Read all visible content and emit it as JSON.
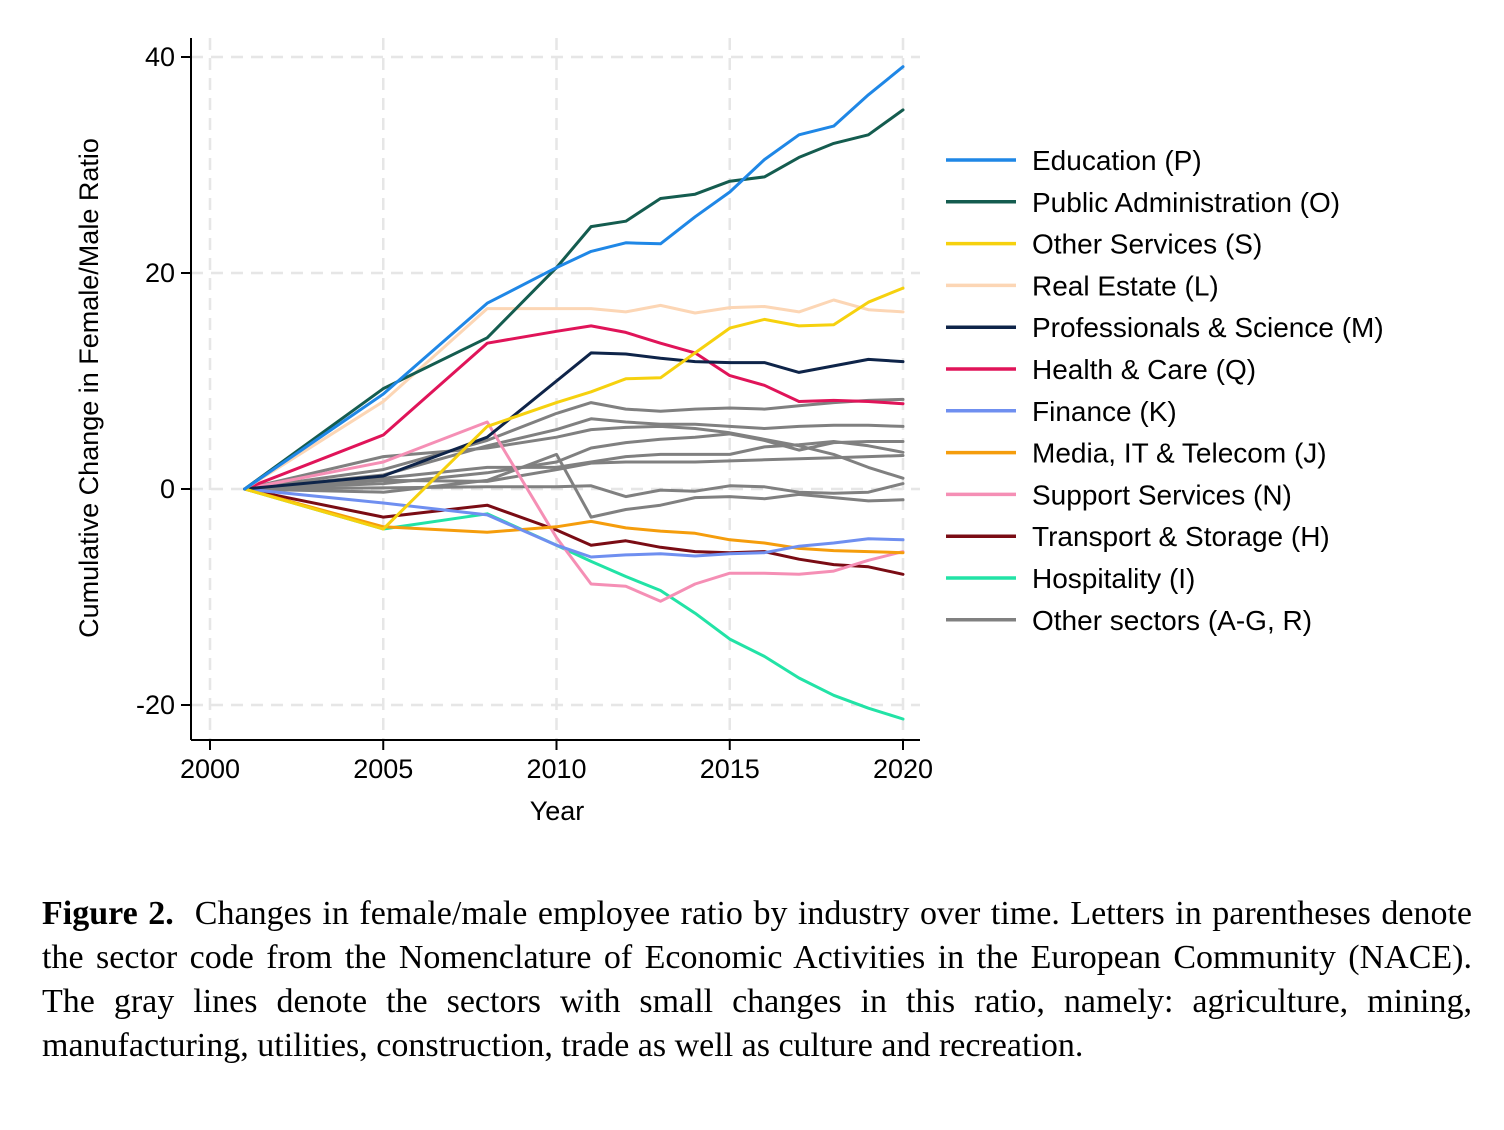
{
  "chart_data": {
    "type": "line",
    "xlabel": "Year",
    "ylabel": "Cumulative Change in Female/Male Ratio",
    "xlim": [
      1999.5,
      2020.5
    ],
    "ylim": [
      -23,
      42
    ],
    "xticks": [
      2000,
      2005,
      2010,
      2015,
      2020
    ],
    "yticks": [
      -20,
      0,
      20,
      40
    ],
    "grid": true,
    "legend_position": "right",
    "series": [
      {
        "name": "Education (P)",
        "color": "#1f87e6",
        "x": [
          2001,
          2005,
          2008,
          2010,
          2011,
          2012,
          2013,
          2014,
          2015,
          2016,
          2017,
          2018,
          2019,
          2020
        ],
        "y": [
          0,
          8.8,
          17.2,
          20.5,
          22,
          22.8,
          22.7,
          25.2,
          27.5,
          30.5,
          32.8,
          33.6,
          36.5,
          39.1
        ]
      },
      {
        "name": "Public Administration (O)",
        "color": "#145c4f",
        "x": [
          2001,
          2005,
          2008,
          2010,
          2011,
          2012,
          2013,
          2014,
          2015,
          2016,
          2017,
          2018,
          2019,
          2020
        ],
        "y": [
          0,
          9.3,
          14,
          20.5,
          24.3,
          24.8,
          26.9,
          27.3,
          28.5,
          28.9,
          30.7,
          32,
          32.8,
          35.1
        ]
      },
      {
        "name": "Other Services (S)",
        "color": "#f6d10e",
        "x": [
          2001,
          2005,
          2008,
          2010,
          2011,
          2012,
          2013,
          2014,
          2015,
          2016,
          2017,
          2018,
          2019,
          2020
        ],
        "y": [
          0,
          -3.7,
          5.8,
          8,
          9,
          10.2,
          10.3,
          12.6,
          14.9,
          15.7,
          15.1,
          15.2,
          17.3,
          18.6
        ]
      },
      {
        "name": "Real Estate (L)",
        "color": "#fcd6b5",
        "x": [
          2001,
          2005,
          2008,
          2010,
          2011,
          2012,
          2013,
          2014,
          2015,
          2016,
          2017,
          2018,
          2019,
          2020
        ],
        "y": [
          0,
          8.1,
          16.7,
          16.7,
          16.7,
          16.4,
          17,
          16.3,
          16.8,
          16.9,
          16.4,
          17.5,
          16.6,
          16.4
        ]
      },
      {
        "name": "Professionals & Science (M)",
        "color": "#0e2449",
        "x": [
          2001,
          2005,
          2008,
          2010,
          2011,
          2012,
          2013,
          2014,
          2015,
          2016,
          2017,
          2018,
          2019,
          2020
        ],
        "y": [
          0,
          1.2,
          4.8,
          10,
          12.6,
          12.5,
          12.1,
          11.8,
          11.7,
          11.7,
          10.8,
          11.4,
          12,
          11.8
        ]
      },
      {
        "name": "Health & Care (Q)",
        "color": "#e01459",
        "x": [
          2001,
          2005,
          2008,
          2010,
          2011,
          2012,
          2013,
          2014,
          2015,
          2016,
          2017,
          2018,
          2019,
          2020
        ],
        "y": [
          0,
          5,
          13.5,
          14.6,
          15.1,
          14.5,
          13.5,
          12.6,
          10.5,
          9.6,
          8.1,
          8.2,
          8.1,
          7.9
        ]
      },
      {
        "name": "Finance (K)",
        "color": "#6f8ff0",
        "x": [
          2001,
          2005,
          2008,
          2010,
          2011,
          2012,
          2013,
          2014,
          2015,
          2016,
          2017,
          2018,
          2019,
          2020
        ],
        "y": [
          0,
          -1.3,
          -2.4,
          -5.2,
          -6.3,
          -6.1,
          -6,
          -6.2,
          -6,
          -5.9,
          -5.3,
          -5,
          -4.6,
          -4.7
        ]
      },
      {
        "name": "Media, IT & Telecom (J)",
        "color": "#f59d0c",
        "x": [
          2001,
          2005,
          2008,
          2010,
          2011,
          2012,
          2013,
          2014,
          2015,
          2016,
          2017,
          2018,
          2019,
          2020
        ],
        "y": [
          0,
          -3.5,
          -4,
          -3.5,
          -3,
          -3.6,
          -3.9,
          -4.1,
          -4.7,
          -5,
          -5.5,
          -5.7,
          -5.8,
          -5.9
        ]
      },
      {
        "name": "Support Services (N)",
        "color": "#f58fb5",
        "x": [
          2001,
          2005,
          2008,
          2010,
          2011,
          2012,
          2013,
          2014,
          2015,
          2016,
          2017,
          2018,
          2019,
          2020
        ],
        "y": [
          0,
          2.5,
          6.2,
          -4.5,
          -8.8,
          -9,
          -10.4,
          -8.8,
          -7.8,
          -7.8,
          -7.9,
          -7.6,
          -6.6,
          -5.8
        ]
      },
      {
        "name": "Transport & Storage (H)",
        "color": "#7a0c14",
        "x": [
          2001,
          2005,
          2008,
          2010,
          2011,
          2012,
          2013,
          2014,
          2015,
          2016,
          2017,
          2018,
          2019,
          2020
        ],
        "y": [
          0,
          -2.6,
          -1.5,
          -3.8,
          -5.2,
          -4.8,
          -5.4,
          -5.8,
          -5.9,
          -5.8,
          -6.5,
          -7,
          -7.2,
          -7.9
        ]
      },
      {
        "name": "Hospitality (I)",
        "color": "#22e3a6",
        "x": [
          2001,
          2005,
          2008,
          2010,
          2011,
          2012,
          2013,
          2014,
          2015,
          2016,
          2017,
          2018,
          2019,
          2020
        ],
        "y": [
          0,
          -3.7,
          -2.3,
          -5.2,
          -6.7,
          -8.1,
          -9.4,
          -11.5,
          -13.9,
          -15.5,
          -17.5,
          -19.1,
          -20.3,
          -21.3
        ]
      },
      {
        "name": "Other sectors (A-G, R)",
        "color": "#808080",
        "x": [
          2001,
          2005,
          2008,
          2010,
          2011,
          2012,
          2013,
          2014,
          2015,
          2016,
          2017,
          2018,
          2019,
          2020
        ],
        "y": [
          0,
          1.8,
          4.5,
          7,
          8,
          7.4,
          7.2,
          7.4,
          7.5,
          7.4,
          7.7,
          8,
          8.2,
          8.3
        ]
      },
      {
        "name": "",
        "color": "#808080",
        "x": [
          2001,
          2005,
          2008,
          2010,
          2011,
          2012,
          2013,
          2014,
          2015,
          2016,
          2017,
          2018,
          2019,
          2020
        ],
        "y": [
          0,
          1.3,
          4,
          5.5,
          6.5,
          6.2,
          6,
          6,
          5.8,
          5.6,
          5.8,
          5.9,
          5.9,
          5.8
        ]
      },
      {
        "name": "",
        "color": "#808080",
        "x": [
          2001,
          2005,
          2008,
          2010,
          2011,
          2012,
          2013,
          2014,
          2015,
          2016,
          2017,
          2018,
          2019,
          2020
        ],
        "y": [
          0,
          3,
          3.8,
          4.8,
          5.5,
          5.7,
          5.8,
          5.6,
          5.2,
          4.6,
          4,
          3.2,
          2,
          1
        ]
      },
      {
        "name": "",
        "color": "#808080",
        "x": [
          2001,
          2005,
          2008,
          2010,
          2011,
          2012,
          2013,
          2014,
          2015,
          2016,
          2017,
          2018,
          2019,
          2020
        ],
        "y": [
          0,
          0.5,
          1.5,
          2.5,
          3.8,
          4.3,
          4.6,
          4.8,
          5.1,
          4.5,
          3.6,
          4.3,
          4.4,
          4.4
        ]
      },
      {
        "name": "",
        "color": "#808080",
        "x": [
          2001,
          2005,
          2008,
          2010,
          2011,
          2012,
          2013,
          2014,
          2015,
          2016,
          2017,
          2018,
          2019,
          2020
        ],
        "y": [
          0,
          1,
          2,
          2,
          2.5,
          3,
          3.2,
          3.2,
          3.2,
          3.9,
          4.1,
          4.4,
          4,
          3.4
        ]
      },
      {
        "name": "",
        "color": "#808080",
        "x": [
          2001,
          2005,
          2008,
          2010,
          2011,
          2012,
          2013,
          2014,
          2015,
          2016,
          2017,
          2018,
          2019,
          2020
        ],
        "y": [
          0,
          0.8,
          0.7,
          1.8,
          2.4,
          2.5,
          2.5,
          2.5,
          2.6,
          2.7,
          2.8,
          2.9,
          3,
          3.1
        ]
      },
      {
        "name": "",
        "color": "#808080",
        "x": [
          2001,
          2005,
          2008,
          2010,
          2011,
          2012,
          2013,
          2014,
          2015,
          2016,
          2017,
          2018,
          2019,
          2020
        ],
        "y": [
          0,
          0.1,
          0.2,
          0.2,
          0.3,
          -0.7,
          -0.1,
          -0.2,
          0.3,
          0.2,
          -0.3,
          -0.4,
          -0.3,
          0.5
        ]
      },
      {
        "name": "",
        "color": "#808080",
        "x": [
          2001,
          2005,
          2008,
          2010,
          2011,
          2012,
          2013,
          2014,
          2015,
          2016,
          2017,
          2018,
          2019,
          2020
        ],
        "y": [
          0,
          -0.3,
          0.8,
          3.2,
          -2.6,
          -1.9,
          -1.5,
          -0.8,
          -0.7,
          -0.9,
          -0.5,
          -0.8,
          -1.1,
          -1
        ]
      }
    ]
  },
  "caption": {
    "label": "Figure 2.",
    "text": "Changes in female/male employee ratio by industry over time. Letters in parentheses denote the sector code from the Nomenclature of Economic Activities in the European Community (NACE). The gray lines denote the sectors with small changes in this ratio, namely: agriculture, mining, manufacturing, utilities, construction, trade as well as culture and recreation."
  }
}
